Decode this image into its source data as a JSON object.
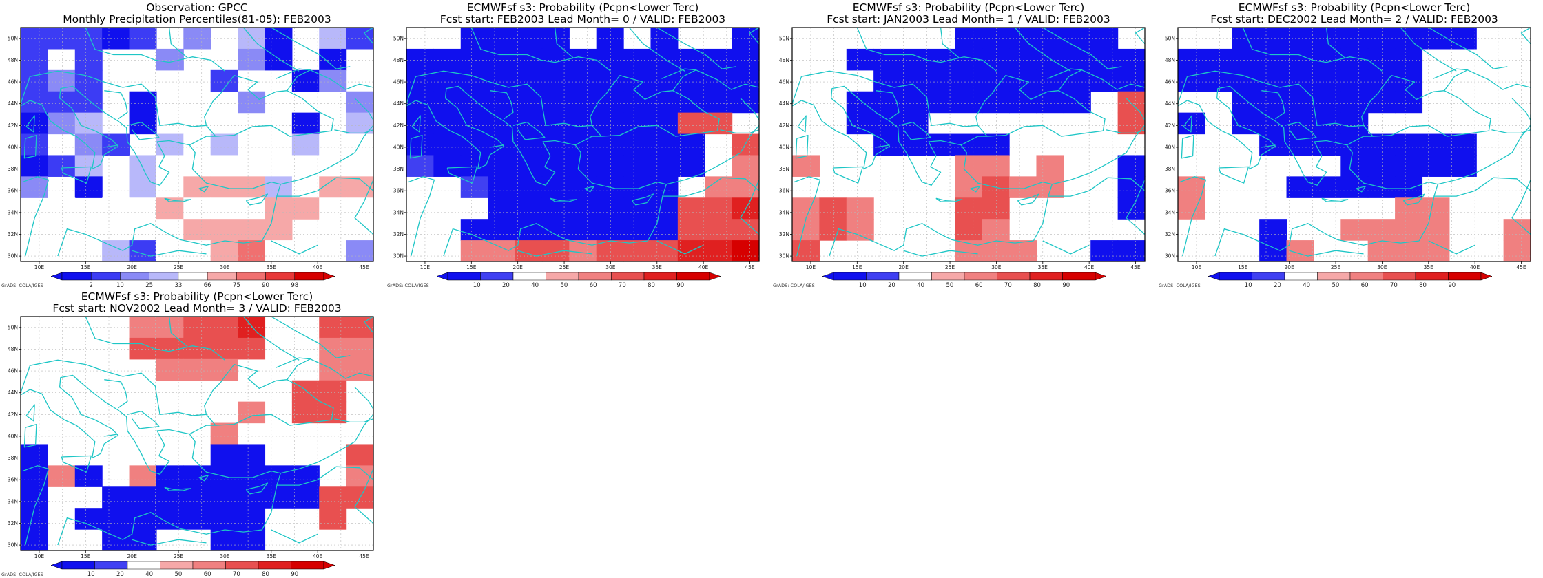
{
  "page": {
    "grads_credit": "GrADS: COLA/IGES"
  },
  "palettes": {
    "percentile": [
      "#1010ee",
      "#3c3cf4",
      "#8a8af6",
      "#b8b8fa",
      "#ffffff",
      "#f6a8a8",
      "#f07070",
      "#e83838",
      "#d60000"
    ],
    "probability": [
      "#1010ee",
      "#4040f2",
      "#ffffff",
      "#f6a8a8",
      "#f08080",
      "#e85050",
      "#e02020",
      "#d60000"
    ]
  },
  "chart_data": [
    {
      "type": "heatmap",
      "title": "Observation: GPCC",
      "subtitle": "Monthly Precipitation Percentiles(81-05): FEB2003",
      "x_ticks": [
        "10E",
        "15E",
        "20E",
        "25E",
        "30E",
        "35E",
        "40E",
        "45E"
      ],
      "y_ticks": [
        "30N",
        "32N",
        "34N",
        "36N",
        "38N",
        "40N",
        "42N",
        "44N",
        "46N",
        "48N",
        "50N"
      ],
      "colorbar": {
        "palette": "percentile",
        "labels": [
          "2",
          "10",
          "25",
          "33",
          "66",
          "75",
          "90",
          "98"
        ]
      },
      "grid": [
        "BBBAB.C.DA.DB",
        "B.B..C..CA.A.",
        "BCB....B..AC.",
        "BBB.A...C...C",
        "ACD.A....EA.D",
        "B.CB.DEDEEDEE",
        "ABD.DEEEEEEEE",
        "C.A.DEFFFDEFF",
        ".E.EEFEEEFFEE",
        "....EEFFFF.E.",
        ".EEDBEEFGEE.C"
      ]
    },
    {
      "type": "heatmap",
      "title": "ECMWFsf s3: Probability (Pcpn<Lower Terc)",
      "subtitle": "Fcst start: FEB2003  Lead Month= 0 / VALID: FEB2003",
      "x_ticks": [
        "10E",
        "15E",
        "20E",
        "25E",
        "30E",
        "35E",
        "40E",
        "45E"
      ],
      "y_ticks": [
        "30N",
        "32N",
        "34N",
        "36N",
        "38N",
        "40N",
        "42N",
        "44N",
        "46N",
        "48N",
        "50N"
      ],
      "colorbar": {
        "palette": "probability",
        "labels": [
          "10",
          "20",
          "40",
          "50",
          "60",
          "70",
          "80",
          "90"
        ]
      },
      "grid": [
        "..AAAA.A.A..A",
        "AAAAAAAAAAAAA",
        "AAAAAAAAAAAAA",
        "AAAAAAAAAAAAA",
        "AAAAAAAAAAEE.",
        "AAAAAAAAAAA.E",
        "BAAAAAAAAAA.D",
        "..BAAAAAAA.DD",
        "...AAAAAAAEEF",
        "..AAAAAAAAEEE",
        "..DDEEDEEEFFG"
      ]
    },
    {
      "type": "heatmap",
      "title": "ECMWFsf s3: Probability (Pcpn<Lower Terc)",
      "subtitle": "Fcst start: JAN2003  Lead Month= 1 / VALID: FEB2003",
      "x_ticks": [
        "10E",
        "15E",
        "20E",
        "25E",
        "30E",
        "35E",
        "40E",
        "45E"
      ],
      "y_ticks": [
        "30N",
        "32N",
        "34N",
        "36N",
        "38N",
        "40N",
        "42N",
        "44N",
        "46N",
        "48N",
        "50N"
      ],
      "colorbar": {
        "palette": "probability",
        "labels": [
          "10",
          "20",
          "40",
          "50",
          "60",
          "70",
          "80",
          "90"
        ]
      },
      "grid": [
        "......AAAAAA.",
        "..AAAAAAAAAAA",
        "...AAAAAAAAAA",
        "..AAAAAAAAA.E",
        "..AAA.......E",
        "...AAAAA.....",
        "D.....DD.D..A",
        "......DEDD..A",
        "DED...EE....A",
        "DED...ED.....",
        "E.....DDD..AA"
      ]
    },
    {
      "type": "heatmap",
      "title": "ECMWFsf s3: Probability (Pcpn<Lower Terc)",
      "subtitle": "Fcst start: DEC2002  Lead Month= 2 / VALID: FEB2003",
      "x_ticks": [
        "10E",
        "15E",
        "20E",
        "25E",
        "30E",
        "35E",
        "40E",
        "45E"
      ],
      "y_ticks": [
        "30N",
        "32N",
        "34N",
        "36N",
        "38N",
        "40N",
        "42N",
        "44N",
        "46N",
        "48N",
        "50N"
      ],
      "colorbar": {
        "palette": "probability",
        "labels": [
          "10",
          "20",
          "40",
          "50",
          "60",
          "70",
          "80",
          "90"
        ]
      },
      "grid": [
        "..AAAAAAAAA..",
        "AAAAAAAAA....",
        "AAAAAAAAA....",
        "..AAAAAAA....",
        "A.AAAAA......",
        "...AAAAAAAA..",
        "......AAAAA..",
        "D...AAAAA....",
        "D.......DD...",
        "...A..DDDD..D",
        "...AD..DDD..D"
      ]
    },
    {
      "type": "heatmap",
      "title": "ECMWFsf s3: Probability (Pcpn<Lower Terc)",
      "subtitle": "Fcst start: NOV2002  Lead Month= 3 / VALID: FEB2003",
      "x_ticks": [
        "10E",
        "15E",
        "20E",
        "25E",
        "30E",
        "35E",
        "40E",
        "45E"
      ],
      "y_ticks": [
        "30N",
        "32N",
        "34N",
        "36N",
        "38N",
        "40N",
        "42N",
        "44N",
        "46N",
        "48N",
        "50N"
      ],
      "colorbar": {
        "palette": "probability",
        "labels": [
          "10",
          "20",
          "40",
          "50",
          "60",
          "70",
          "80",
          "90"
        ]
      },
      "grid": [
        "....DDEEF..EE",
        "....EEEEE..DD",
        ".....DDD...DD",
        "..........EE.",
        "........D.EE.",
        ".......D.....",
        "A......AA...E",
        "ADA.DAAAAAA.D",
        "A..AAAAAAAAEE",
        "A.AAAAAAA..E.",
        "A..AA..AA...."
      ]
    }
  ]
}
